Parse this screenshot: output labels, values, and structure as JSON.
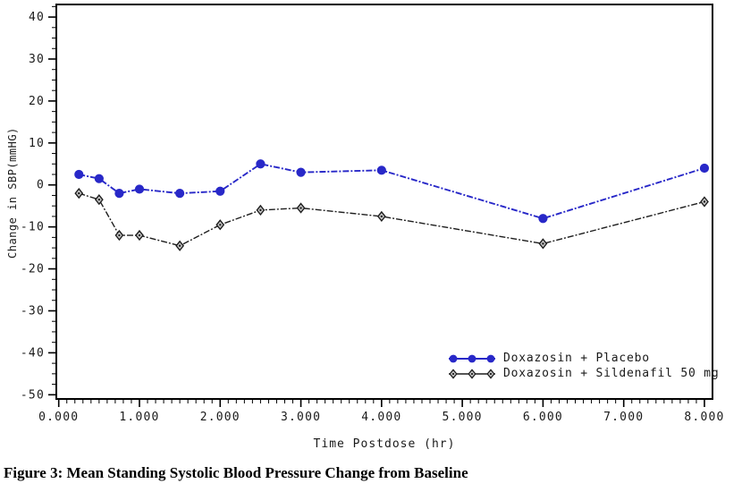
{
  "figure_caption": "Figure 3: Mean Standing Systolic Blood Pressure Change from Baseline",
  "chart_data": {
    "type": "line",
    "title": "",
    "xlabel": "Time Postdose (hr)",
    "ylabel": "Change in SBP(mmHG)",
    "x": [
      0.25,
      0.5,
      0.75,
      1,
      1.5,
      2,
      2.5,
      3,
      4,
      6,
      8
    ],
    "series": [
      {
        "name": "Doxazosin + Placebo",
        "color": "#2828c8",
        "marker": "circle",
        "values": [
          2.5,
          1.5,
          -2,
          -1,
          -2,
          -1.5,
          5,
          3,
          3.5,
          -8,
          4
        ]
      },
      {
        "name": "Doxazosin + Sildenafil 50 mg",
        "color": "#1e1e1e",
        "marker": "diamond",
        "values": [
          -2,
          -3.5,
          -12,
          -12,
          -14.5,
          -9.5,
          -6,
          -5.5,
          -7.5,
          -14,
          -4
        ]
      }
    ],
    "xlim": [
      -0.03,
      8.1
    ],
    "ylim": [
      -51,
      43
    ],
    "x_ticks": [
      0,
      1,
      2,
      3,
      4,
      5,
      6,
      7,
      8
    ],
    "x_tick_labels": [
      "0.000",
      "1.000",
      "2.000",
      "3.000",
      "4.000",
      "5.000",
      "6.000",
      "7.000",
      "8.000"
    ],
    "x_minor_step": 0.1,
    "y_ticks": [
      40,
      30,
      20,
      10,
      0,
      -10,
      -20,
      -30,
      -40,
      -50
    ],
    "y_minor_step": 2.5,
    "grid": false,
    "legend_position": "inside-bottom-right",
    "axis_color": "#000000",
    "marker_fill_diamond": "#c6c6c6"
  }
}
